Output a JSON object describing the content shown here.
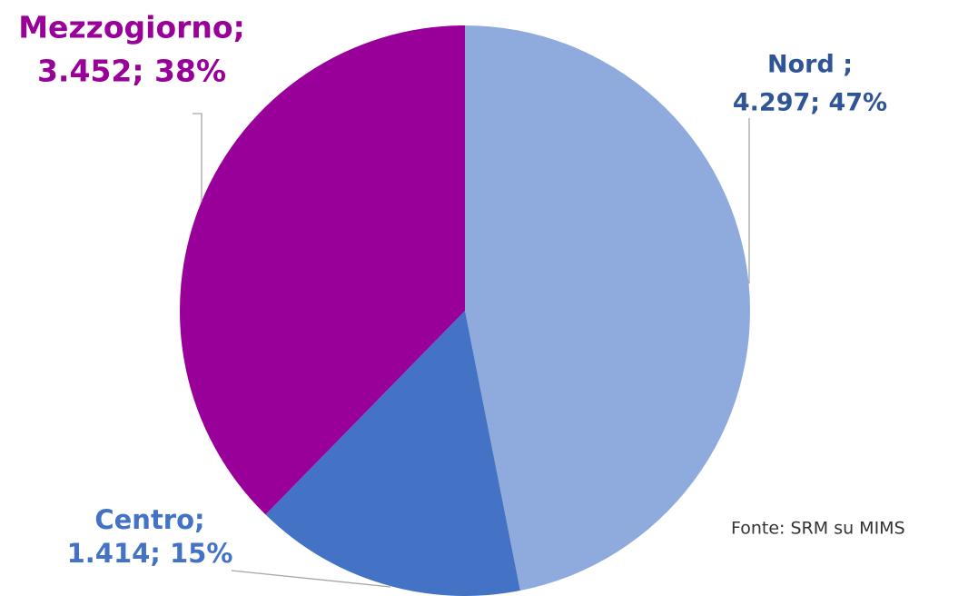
{
  "chart_data": {
    "type": "pie",
    "categories": [
      "Nord ;",
      "Centro;",
      "Mezzogiorno;"
    ],
    "values": [
      4297,
      1414,
      3452
    ],
    "value_labels": [
      "4.297; 47%",
      "1.414; 15%",
      "3.452; 38%"
    ],
    "colors": [
      "#8faadc",
      "#4472c4",
      "#990099"
    ],
    "label_colors": [
      "#2f5597",
      "#4472c4",
      "#990099"
    ],
    "source": "Fonte: SRM su MIMS"
  }
}
